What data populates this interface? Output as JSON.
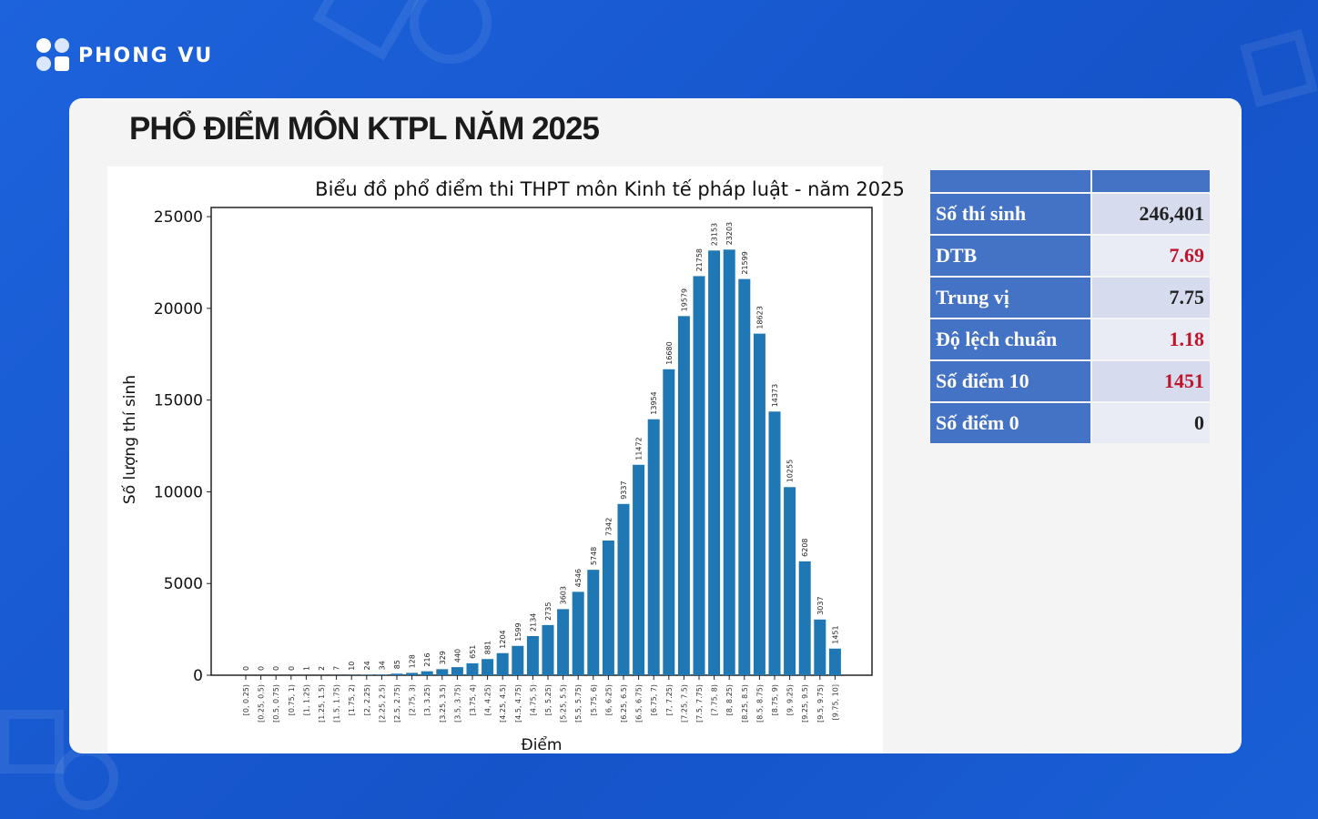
{
  "brand": {
    "name": "PHONG VU"
  },
  "heading": "PHỔ ĐIỂM MÔN KTPL NĂM 2025",
  "stats_table": {
    "rows": [
      {
        "label": "Số thí sinh",
        "value": "246,401",
        "highlight": false
      },
      {
        "label": "DTB",
        "value": "7.69",
        "highlight": true
      },
      {
        "label": "Trung vị",
        "value": "7.75",
        "highlight": false
      },
      {
        "label": "Độ lệch chuẩn",
        "value": "1.18",
        "highlight": true
      },
      {
        "label": "Số điểm 10",
        "value": "1451",
        "highlight": true
      },
      {
        "label": "Số điểm 0",
        "value": "0",
        "highlight": false
      }
    ]
  },
  "colors": {
    "bar": "#1f77b4",
    "background": "#1a5fd6",
    "table_header": "#4472c4",
    "highlight": "#c0142a"
  },
  "chart_data": {
    "type": "bar",
    "title": "Biểu đồ phổ điểm thi THPT môn Kinh tế pháp luật - năm 2025",
    "xlabel": "Điểm",
    "ylabel": "Số lượng thí sinh",
    "ylim": [
      0,
      25500
    ],
    "yticks": [
      0,
      5000,
      10000,
      15000,
      20000,
      25000
    ],
    "grid": false,
    "categories": [
      "[0, 0.25)",
      "[0.25, 0.5)",
      "[0.5, 0.75)",
      "[0.75, 1)",
      "[1, 1.25)",
      "[1.25, 1.5)",
      "[1.5, 1.75)",
      "[1.75, 2)",
      "[2, 2.25)",
      "[2.25, 2.5)",
      "[2.5, 2.75)",
      "[2.75, 3)",
      "[3, 3.25)",
      "[3.25, 3.5)",
      "[3.5, 3.75)",
      "[3.75, 4)",
      "[4, 4.25)",
      "[4.25, 4.5)",
      "[4.5, 4.75)",
      "[4.75, 5)",
      "[5, 5.25)",
      "[5.25, 5.5)",
      "[5.5, 5.75)",
      "[5.75, 6)",
      "[6, 6.25)",
      "[6.25, 6.5)",
      "[6.5, 6.75)",
      "[6.75, 7)",
      "[7, 7.25)",
      "[7.25, 7.5)",
      "[7.5, 7.75)",
      "[7.75, 8)",
      "[8, 8.25)",
      "[8.25, 8.5)",
      "[8.5, 8.75)",
      "[8.75, 9)",
      "[9, 9.25)",
      "[9.25, 9.5)",
      "[9.5, 9.75)",
      "[9.75, 10]"
    ],
    "values": [
      0,
      0,
      0,
      0,
      1,
      2,
      7,
      10,
      24,
      34,
      85,
      128,
      216,
      329,
      440,
      651,
      881,
      1204,
      1599,
      2134,
      2735,
      3603,
      4546,
      5748,
      7342,
      9337,
      11472,
      13954,
      16680,
      19579,
      21758,
      23153,
      23203,
      21599,
      18623,
      14373,
      10255,
      6208,
      3037,
      1451
    ]
  }
}
